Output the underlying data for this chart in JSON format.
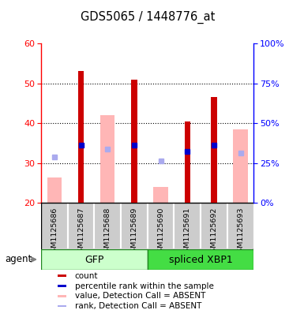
{
  "title": "GDS5065 / 1448776_at",
  "samples": [
    "GSM1125686",
    "GSM1125687",
    "GSM1125688",
    "GSM1125689",
    "GSM1125690",
    "GSM1125691",
    "GSM1125692",
    "GSM1125693"
  ],
  "red_bars": [
    null,
    53.0,
    null,
    51.0,
    null,
    40.5,
    46.5,
    null
  ],
  "pink_bars": [
    26.5,
    null,
    42.0,
    null,
    24.0,
    null,
    null,
    38.5
  ],
  "blue_squares": [
    null,
    34.5,
    null,
    34.5,
    null,
    33.0,
    34.5,
    null
  ],
  "light_blue_squares": [
    31.5,
    null,
    33.5,
    null,
    30.5,
    null,
    null,
    32.5
  ],
  "ylim_left": [
    20,
    60
  ],
  "ylim_right": [
    0,
    100
  ],
  "yticks_left": [
    20,
    30,
    40,
    50,
    60
  ],
  "yticks_right": [
    0,
    25,
    50,
    75,
    100
  ],
  "ytick_labels_right": [
    "0%",
    "25%",
    "50%",
    "75%",
    "100%"
  ],
  "red_color": "#cc0000",
  "pink_color": "#ffb6b6",
  "blue_color": "#0000cc",
  "light_blue_color": "#aaaaee",
  "gfp_color": "#ccffcc",
  "xbp1_color": "#44dd44",
  "group_border_color": "#228822",
  "bg_label": "#cccccc",
  "legend_items": [
    {
      "color": "#cc0000",
      "label": "count"
    },
    {
      "color": "#0000cc",
      "label": "percentile rank within the sample"
    },
    {
      "color": "#ffb6b6",
      "label": "value, Detection Call = ABSENT"
    },
    {
      "color": "#aaaaee",
      "label": "rank, Detection Call = ABSENT"
    }
  ]
}
